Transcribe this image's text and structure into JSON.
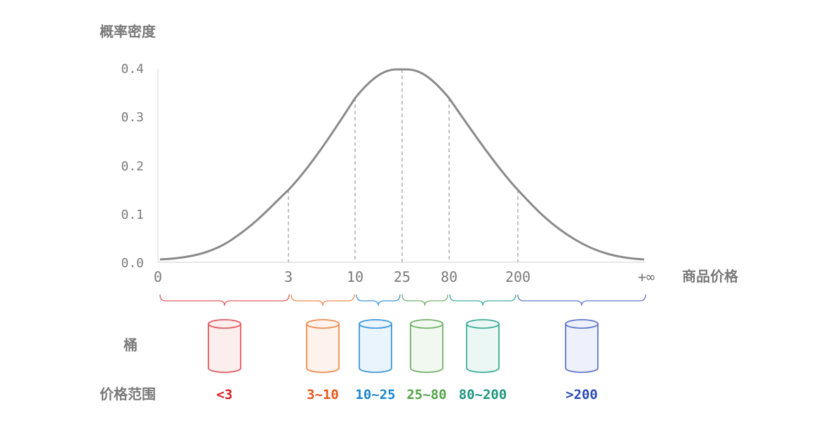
{
  "y_axis_label": "概率密度",
  "x_axis_label": "商品价格",
  "bucket_row_label": "桶",
  "range_row_label": "价格范围",
  "y_ticks": [
    "0.0",
    "0.1",
    "0.2",
    "0.3",
    "0.4"
  ],
  "x_ticks": [
    "0",
    "3",
    "10",
    "25",
    "80",
    "200",
    "+∞"
  ],
  "buckets": [
    {
      "range": "<3",
      "color": "#e05a5f",
      "fill": "#fdeeee",
      "text_color": "#d81e1e"
    },
    {
      "range": "3~10",
      "color": "#ef8a4e",
      "fill": "#fef3ec",
      "text_color": "#e8561a"
    },
    {
      "range": "10~25",
      "color": "#3d97d8",
      "fill": "#eaf4fc",
      "text_color": "#1c86d0"
    },
    {
      "range": "25~80",
      "color": "#74b06c",
      "fill": "#f1f8ef",
      "text_color": "#53a448"
    },
    {
      "range": "80~200",
      "color": "#3cad9a",
      "fill": "#eaf7f4",
      "text_color": "#1e9680"
    },
    {
      "range": ">200",
      "color": "#6077c9",
      "fill": "#eef1fb",
      "text_color": "#2a49b7"
    }
  ],
  "colors": {
    "curve": "#8a8a8a",
    "axis": "#d9d9d9",
    "label": "#7a7a7a"
  }
}
